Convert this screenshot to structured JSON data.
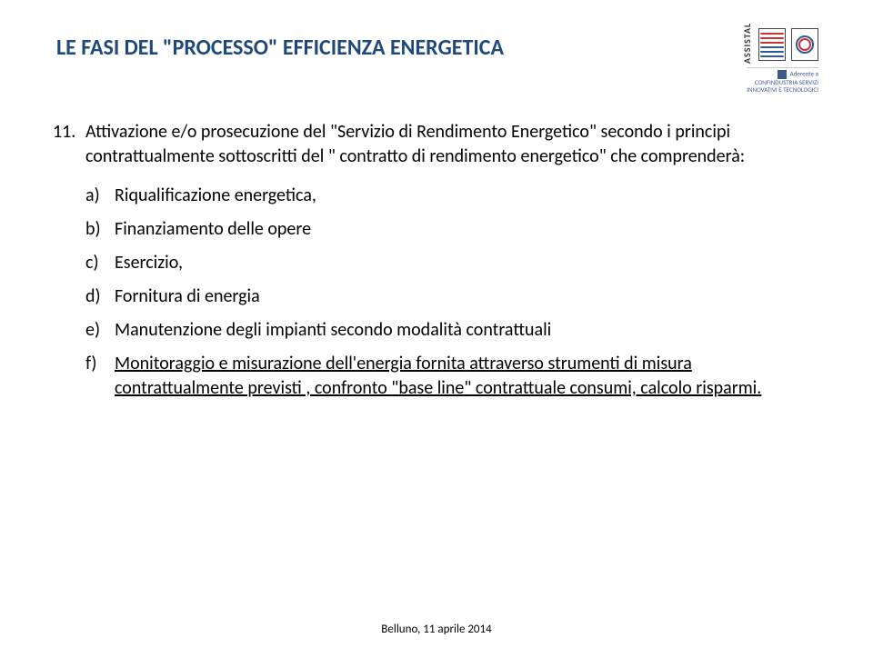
{
  "title": "LE FASI DEL \"PROCESSO\" EFFICIENZA  ENERGETICA",
  "logo": {
    "name_vertical": "ASSISTAL",
    "subtext_line1": "Aderente a",
    "subtext_line2": "CONFINDUSTRIA SERVIZI",
    "subtext_line3": "INNOVATIVI E TECNOLOGICI"
  },
  "item_number": "11.",
  "item_prefix": "Attivazione e/o prosecuzione del ",
  "item_quoted": "Servizio di Rendimento Energetico",
  "item_mid1": " secondo i principi contrattualmente sottoscritti del ",
  "item_quoted2": " contratto di rendimento energetico",
  "item_suffix": " che comprenderà:",
  "sub": {
    "a": {
      "lab": "a)",
      "txt": "Riqualificazione energetica,"
    },
    "b": {
      "lab": "b)",
      "txt": "Finanziamento delle opere"
    },
    "c": {
      "lab": "c)",
      "txt": "Esercizio,"
    },
    "d": {
      "lab": "d)",
      "txt": "Fornitura di energia"
    },
    "e": {
      "lab": "e)",
      "txt": "Manutenzione degli impianti  secondo modalità contrattuali"
    },
    "f": {
      "lab": "f)",
      "txt_pre": "Monitoraggio e  misurazione  dell'energia fornita attraverso strumenti di misura  contrattualmente previsti , confronto ",
      "txt_quoted": "base line",
      "txt_post": " contrattuale consumi, calcolo risparmi.",
      "underline": true
    }
  },
  "footer": "Belluno, 11 aprile 2014",
  "colors": {
    "title": "#1f497d",
    "body_text": "#000000",
    "background": "#ffffff"
  },
  "fonts": {
    "title_size_pt": 18,
    "body_size_pt": 15,
    "footer_size_pt": 10
  }
}
